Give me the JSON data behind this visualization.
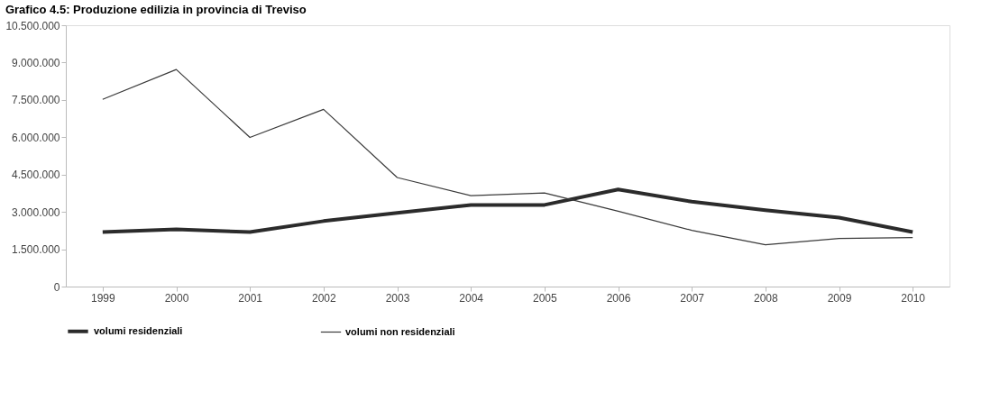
{
  "chart_data": {
    "type": "line",
    "title": "Grafico 4.5: Produzione edilizia in provincia di Treviso",
    "categories": [
      "1999",
      "2000",
      "2001",
      "2002",
      "2003",
      "2004",
      "2005",
      "2006",
      "2007",
      "2008",
      "2009",
      "2010"
    ],
    "series": [
      {
        "name": "volumi residenziali",
        "color": "#2b2b2b",
        "values": [
          2190000,
          2300000,
          2190000,
          2630000,
          2960000,
          3280000,
          3280000,
          3900000,
          3410000,
          3070000,
          2770000,
          2190000
        ]
      },
      {
        "name": "volumi non residenziali",
        "color": "#3a3a3a",
        "values": [
          7520000,
          8720000,
          5990000,
          7120000,
          4380000,
          3650000,
          3760000,
          3030000,
          2260000,
          1680000,
          1930000,
          1970000
        ]
      }
    ],
    "ylim": [
      0,
      10500000
    ],
    "yticks": [
      {
        "value": 0,
        "label": "0"
      },
      {
        "value": 1500000,
        "label": "1.500.000"
      },
      {
        "value": 3000000,
        "label": "3.000.000"
      },
      {
        "value": 4500000,
        "label": "4.500.000"
      },
      {
        "value": 6000000,
        "label": "6.000.000"
      },
      {
        "value": 7500000,
        "label": "7.500.000"
      },
      {
        "value": 9000000,
        "label": "9.000.000"
      },
      {
        "value": 10500000,
        "label": "10.500.000"
      }
    ],
    "grid": false,
    "legend": "bottom",
    "marker": "none",
    "line_style": "solid"
  }
}
